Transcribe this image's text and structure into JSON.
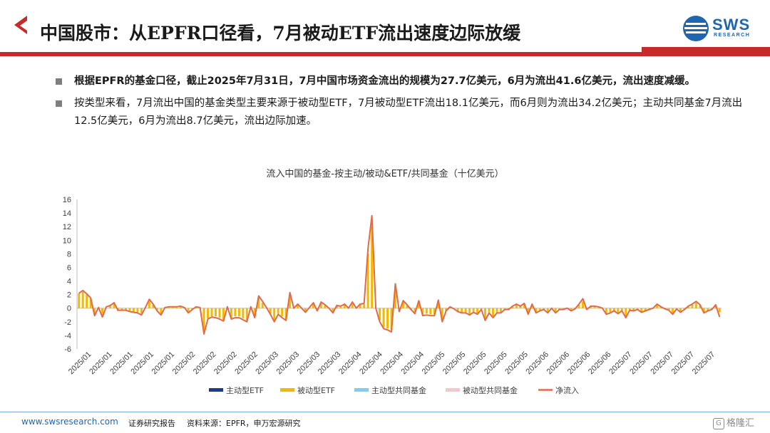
{
  "header": {
    "title": "中国股市：从EPFR口径看，7月被动ETF流出速度边际放缓",
    "logo_text": "SWS",
    "logo_sub": "RESEARCH"
  },
  "bullets": [
    {
      "text": "根据EPFR的基金口径，截止2025年7月31日，7月中国市场资金流出的规模为27.7亿美元，6月为流出41.6亿美元，流出速度减缓。",
      "bold": true
    },
    {
      "text": "按类型来看，7月流出中国的基金类型主要来源于被动型ETF，7月被动型ETF流出18.1亿美元，而6月则为流出34.2亿美元；主动共同基金7月流出12.5亿美元，6月为流出8.7亿美元，流出边际加速。",
      "bold": false
    }
  ],
  "chart_data": {
    "type": "bar",
    "title": "流入中国的基金-按主动/被动&ETF/共同基金（十亿美元）",
    "ylim": [
      -6,
      16
    ],
    "yticks": [
      "16",
      "14",
      "12",
      "10",
      "8",
      "6",
      "4",
      "2",
      "0",
      "-2",
      "-4",
      "-6"
    ],
    "x_tick_labels": [
      "2025/01",
      "2025/01",
      "2025/01",
      "2025/01",
      "2025/01",
      "2025/02",
      "2025/02",
      "2025/02",
      "2025/02",
      "2025/03",
      "2025/03",
      "2025/03",
      "2025/03",
      "2025/04",
      "2025/04",
      "2025/04",
      "2025/04",
      "2025/05",
      "2025/05",
      "2025/05",
      "2025/05",
      "2025/05",
      "2025/06",
      "2025/06",
      "2025/06",
      "2025/06",
      "2025/07",
      "2025/07",
      "2025/07",
      "2025/07",
      "2025/07"
    ],
    "legend_position": "bottom",
    "series": [
      {
        "name": "主动型ETF",
        "color": "#1f3a8a",
        "values": [
          0.0,
          0.0,
          0.0,
          0.0,
          0.0,
          0.0,
          0.0,
          0.0,
          0.0,
          0.0,
          0.0,
          0.0,
          0.0,
          0.0,
          0.0,
          0.0,
          0.0,
          0.0,
          0.0,
          0.0,
          0.0,
          0.0,
          0.0,
          0.0,
          0.0,
          0.0,
          0.0,
          0.0,
          0.0,
          0.0,
          0.0,
          0.0,
          0.0,
          0.0,
          0.0,
          0.0,
          0.0,
          0.0,
          0.0,
          0.0,
          0.0,
          0.0,
          0.0,
          0.0,
          0.0,
          0.0,
          0.0,
          0.0,
          0.0,
          0.0,
          0.0,
          0.0,
          0.0,
          0.0,
          0.0,
          0.0,
          0.0,
          0.0,
          0.0,
          0.0,
          0.0,
          0.0,
          0.0,
          0.0,
          0.0,
          0.0,
          0.0,
          0.0,
          0.0,
          0.0,
          0.0,
          0.0,
          0.0,
          0.0,
          0.0,
          0.0,
          0.0,
          0.0,
          0.0,
          0.0,
          0.0,
          0.0,
          0.0,
          0.0,
          0.0,
          0.0,
          0.0,
          0.0,
          0.0,
          0.0,
          0.0,
          0.0,
          0.0,
          0.0,
          0.0,
          0.0,
          0.0,
          0.0,
          0.0,
          0.0,
          0.0,
          0.0,
          0.0,
          0.0,
          0.0,
          0.0,
          0.0,
          0.0,
          0.0,
          0.0,
          0.0,
          0.0,
          0.0,
          0.0,
          0.0,
          0.0,
          0.0,
          0.0,
          0.0,
          0.0,
          0.0,
          0.0,
          0.0,
          0.0,
          0.0,
          0.0,
          0.0,
          0.0,
          0.0,
          0.0,
          0.0,
          0.0,
          0.0,
          0.0,
          0.0,
          0.0,
          0.0,
          0.0,
          0.0,
          0.0,
          0.0,
          0.0,
          0.0,
          0.0,
          0.0,
          0.0,
          0.0,
          0.0,
          0.0,
          0.0,
          0.0,
          0.0,
          0.0,
          0.0,
          0.0,
          0.0,
          0.0,
          0.0,
          0.0,
          0.0,
          0.0,
          0.0,
          0.0,
          0.0,
          0.0
        ]
      },
      {
        "name": "被动型ETF",
        "color": "#f5b800",
        "values": [
          2.2,
          2.4,
          2.0,
          1.4,
          -1.0,
          0.0,
          -1.2,
          0.0,
          0.5,
          0.7,
          -0.4,
          -0.3,
          -0.3,
          -0.4,
          -0.5,
          -0.6,
          -0.8,
          0.0,
          1.1,
          0.5,
          -0.3,
          -0.8,
          0.0,
          0.1,
          0.1,
          0.1,
          0.2,
          0.1,
          -0.6,
          -0.2,
          0.1,
          0.0,
          -3.5,
          -1.5,
          -1.2,
          -1.2,
          -1.4,
          -1.7,
          0.1,
          -1.4,
          -1.2,
          -1.2,
          -1.5,
          -1.8,
          0.1,
          -1.2,
          1.6,
          0.8,
          0.0,
          -0.8,
          -1.8,
          -0.8,
          -1.2,
          -1.6,
          2.0,
          0.0,
          0.5,
          0.0,
          -0.5,
          0.0,
          0.6,
          -0.4,
          0.8,
          0.4,
          0.0,
          -0.6,
          0.3,
          0.2,
          0.5,
          0.0,
          0.8,
          0.0,
          0.5,
          0.6,
          8.0,
          12.0,
          0.0,
          -1.8,
          -2.8,
          -3.0,
          -3.2,
          3.0,
          -0.5,
          0.9,
          0.4,
          -0.2,
          -0.7,
          1.0,
          -1.0,
          -0.8,
          -0.9,
          -0.9,
          1.0,
          -1.8,
          -0.4,
          0.1,
          -0.1,
          -0.4,
          -0.6,
          -0.6,
          -0.9,
          -0.5,
          -0.8,
          -0.2,
          -1.6,
          -0.6,
          -1.2,
          -0.6,
          -0.6,
          -0.2,
          -0.2,
          0.2,
          0.5,
          0.3,
          0.6,
          -0.8,
          0.5,
          -0.6,
          -0.4,
          -0.2,
          -0.6,
          0.0,
          -0.6,
          -0.2,
          -0.2,
          0.0,
          -0.4,
          -0.1,
          0.5,
          1.0,
          -0.2,
          0.3,
          0.2,
          0.1,
          0.0,
          -0.8,
          -0.6,
          -0.4,
          -0.7,
          -0.4,
          -1.2,
          -0.3,
          -0.4,
          -0.2,
          -0.5,
          -0.4,
          -0.2,
          0.0,
          0.5,
          0.2,
          -0.1,
          -0.3,
          -0.8,
          -0.1,
          -0.5,
          -0.2,
          0.2,
          0.5,
          0.8,
          0.4,
          -0.6,
          -0.4,
          -0.2,
          0.4,
          -0.6
        ]
      },
      {
        "name": "主动型共同基金",
        "color": "#7ecfee",
        "values": [
          0.0,
          0.0,
          0.0,
          0.0,
          0.0,
          0.0,
          0.0,
          0.0,
          0.0,
          0.0,
          0.0,
          0.0,
          0.0,
          0.0,
          0.0,
          0.0,
          0.0,
          0.0,
          0.0,
          0.0,
          0.0,
          0.0,
          0.0,
          0.0,
          0.0,
          0.0,
          0.0,
          0.0,
          0.0,
          0.0,
          0.0,
          0.0,
          0.0,
          0.0,
          0.0,
          0.0,
          0.0,
          0.0,
          0.0,
          0.0,
          0.0,
          0.0,
          0.0,
          0.0,
          0.0,
          0.0,
          0.0,
          0.0,
          0.0,
          0.0,
          0.0,
          0.0,
          0.0,
          0.0,
          0.0,
          0.0,
          0.0,
          0.0,
          0.0,
          0.0,
          0.0,
          0.0,
          0.0,
          0.0,
          0.0,
          0.0,
          0.0,
          0.0,
          0.0,
          0.0,
          0.0,
          0.0,
          0.0,
          0.0,
          0.0,
          0.0,
          0.0,
          0.0,
          0.0,
          0.0,
          0.0,
          0.0,
          0.0,
          0.0,
          0.0,
          0.0,
          0.0,
          0.0,
          0.0,
          0.0,
          0.0,
          0.0,
          0.0,
          0.0,
          0.0,
          0.0,
          0.0,
          0.0,
          0.0,
          0.0,
          0.0,
          0.0,
          0.0,
          0.0,
          0.0,
          0.0,
          0.0,
          0.0,
          0.0,
          0.0,
          0.0,
          0.0,
          0.0,
          0.0,
          0.0,
          0.0,
          0.0,
          0.0,
          0.0,
          0.0,
          0.0,
          0.0,
          0.0,
          0.0,
          0.0,
          0.0,
          0.0,
          0.0,
          0.0,
          0.0,
          0.0,
          0.0,
          0.0,
          0.0,
          0.0,
          0.0,
          0.0,
          0.0,
          0.0,
          0.0,
          0.0,
          0.0,
          0.0,
          0.0,
          0.0,
          0.0,
          0.0,
          0.0,
          0.0,
          0.0,
          0.0,
          0.0,
          0.0,
          0.0,
          0.0,
          0.0,
          0.0,
          0.0,
          0.0,
          0.0,
          0.0,
          0.0,
          0.0,
          0.0,
          0.0
        ]
      },
      {
        "name": "被动型共同基金",
        "color": "#f7c6cc",
        "values": [
          0.0,
          0.0,
          0.0,
          0.0,
          0.0,
          0.0,
          0.0,
          0.0,
          0.0,
          0.0,
          0.0,
          0.0,
          0.0,
          0.0,
          0.0,
          0.0,
          0.0,
          0.0,
          0.0,
          0.0,
          0.0,
          0.0,
          0.0,
          0.0,
          0.0,
          0.0,
          0.0,
          0.0,
          0.0,
          0.0,
          0.0,
          0.0,
          0.0,
          0.0,
          0.0,
          0.0,
          0.0,
          0.0,
          0.0,
          0.0,
          0.0,
          0.0,
          0.0,
          0.0,
          0.0,
          0.0,
          0.0,
          0.0,
          0.0,
          0.0,
          0.0,
          0.0,
          0.0,
          0.0,
          0.0,
          0.0,
          0.0,
          0.0,
          0.0,
          0.0,
          0.0,
          0.0,
          0.0,
          0.0,
          0.0,
          0.0,
          0.0,
          0.0,
          0.0,
          0.0,
          0.0,
          0.0,
          0.0,
          0.0,
          0.0,
          0.0,
          0.0,
          0.0,
          0.0,
          0.0,
          0.0,
          0.0,
          0.0,
          0.0,
          0.0,
          0.0,
          0.0,
          0.0,
          0.0,
          0.0,
          0.0,
          0.0,
          0.0,
          0.0,
          0.0,
          0.0,
          0.0,
          0.0,
          0.0,
          0.0,
          0.0,
          0.0,
          0.0,
          0.0,
          0.0,
          0.0,
          0.0,
          0.0,
          0.0,
          0.0,
          0.0,
          0.0,
          0.0,
          0.0,
          0.0,
          0.0,
          0.0,
          0.0,
          0.0,
          0.0,
          0.0,
          0.0,
          0.0,
          0.0,
          0.0,
          0.0,
          0.0,
          0.0,
          0.0,
          0.0,
          0.0,
          0.0,
          0.0,
          0.0,
          0.0,
          0.0,
          0.0,
          0.0,
          0.0,
          0.0,
          0.0,
          0.0,
          0.0,
          0.0,
          0.0,
          0.0,
          0.0,
          0.0,
          0.0,
          0.0,
          0.0,
          0.0,
          0.0,
          0.0,
          0.0,
          0.0,
          0.0,
          0.0,
          0.0,
          0.0,
          0.0,
          0.0,
          0.0,
          0.0,
          0.0
        ]
      }
    ],
    "line": {
      "name": "净流入",
      "color": "#e06a4a",
      "values": [
        2.2,
        2.6,
        2.1,
        1.5,
        -1.1,
        0.1,
        -1.3,
        0.2,
        0.4,
        0.8,
        -0.3,
        -0.3,
        -0.3,
        -0.5,
        -0.6,
        -0.7,
        -1.0,
        0.1,
        1.3,
        0.6,
        -0.4,
        -1.0,
        0.1,
        0.2,
        0.2,
        0.2,
        0.3,
        0.1,
        -0.7,
        -0.2,
        0.2,
        0.1,
        -3.8,
        -1.6,
        -1.3,
        -1.4,
        -1.6,
        -1.9,
        0.2,
        -1.6,
        -1.4,
        -1.4,
        -1.7,
        -2.0,
        0.2,
        -1.4,
        1.8,
        1.0,
        0.1,
        -0.9,
        -2.0,
        -0.9,
        -1.4,
        -1.8,
        2.3,
        0.0,
        0.6,
        0.0,
        -0.6,
        0.1,
        0.8,
        -0.4,
        0.9,
        0.5,
        0.0,
        -0.7,
        0.4,
        0.3,
        0.6,
        0.0,
        0.9,
        0.0,
        0.6,
        0.7,
        8.8,
        13.6,
        0.0,
        -2.0,
        -3.0,
        -3.2,
        -3.5,
        3.6,
        -0.5,
        1.1,
        0.5,
        -0.2,
        -0.8,
        1.1,
        -1.1,
        -1.0,
        -1.1,
        -1.1,
        1.2,
        -2.0,
        -0.4,
        0.2,
        -0.1,
        -0.5,
        -0.7,
        -0.7,
        -1.0,
        -0.6,
        -0.9,
        -0.2,
        -1.8,
        -0.7,
        -1.4,
        -0.7,
        -0.7,
        -0.2,
        -0.2,
        0.3,
        0.6,
        0.3,
        0.7,
        -0.9,
        0.6,
        -0.7,
        -0.4,
        -0.2,
        -0.7,
        0.0,
        -0.7,
        -0.2,
        -0.2,
        0.0,
        -0.4,
        -0.1,
        0.6,
        1.4,
        -0.2,
        0.3,
        0.3,
        0.2,
        0.0,
        -0.9,
        -0.7,
        -0.4,
        -0.8,
        -0.4,
        -1.4,
        -0.3,
        -0.4,
        -0.2,
        -0.6,
        -0.4,
        -0.2,
        0.0,
        0.6,
        0.2,
        -0.1,
        -0.3,
        -0.9,
        -0.1,
        -0.6,
        -0.2,
        0.3,
        0.6,
        1.0,
        0.5,
        -0.7,
        -0.4,
        -0.2,
        0.5,
        -1.3
      ]
    }
  },
  "footer": {
    "url": "www.swsresearch.com",
    "note": "证券研究报告",
    "source": "资料来源：EPFR，申万宏源研究"
  }
}
